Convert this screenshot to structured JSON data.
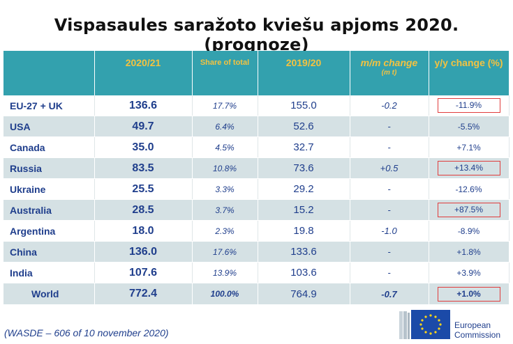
{
  "title": "Vispasaules saražoto kviešu apjoms 2020. (prognoze)",
  "chart_data": {
    "type": "table",
    "columns": [
      {
        "label": "",
        "sub": ""
      },
      {
        "label": "2020/21",
        "sub": ""
      },
      {
        "label": "Share of total",
        "sub": ""
      },
      {
        "label": "2019/20",
        "sub": ""
      },
      {
        "label": "m/m change",
        "sub": "(m t)"
      },
      {
        "label": "y/y change (%)",
        "sub": ""
      }
    ],
    "rows": [
      {
        "country": "EU-27 + UK",
        "prod_2020_21": "136.6",
        "share": "17.7%",
        "prod_2019_20": "155.0",
        "mm_change": "-0.2",
        "yy_change": "-11.9%",
        "highlight": true
      },
      {
        "country": "USA",
        "prod_2020_21": "49.7",
        "share": "6.4%",
        "prod_2019_20": "52.6",
        "mm_change": "-",
        "yy_change": "-5.5%",
        "highlight": false
      },
      {
        "country": "Canada",
        "prod_2020_21": "35.0",
        "share": "4.5%",
        "prod_2019_20": "32.7",
        "mm_change": "-",
        "yy_change": "+7.1%",
        "highlight": false
      },
      {
        "country": "Russia",
        "prod_2020_21": "83.5",
        "share": "10.8%",
        "prod_2019_20": "73.6",
        "mm_change": "+0.5",
        "yy_change": "+13.4%",
        "highlight": true
      },
      {
        "country": "Ukraine",
        "prod_2020_21": "25.5",
        "share": "3.3%",
        "prod_2019_20": "29.2",
        "mm_change": "-",
        "yy_change": "-12.6%",
        "highlight": false
      },
      {
        "country": "Australia",
        "prod_2020_21": "28.5",
        "share": "3.7%",
        "prod_2019_20": "15.2",
        "mm_change": "-",
        "yy_change": "+87.5%",
        "highlight": true
      },
      {
        "country": "Argentina",
        "prod_2020_21": "18.0",
        "share": "2.3%",
        "prod_2019_20": "19.8",
        "mm_change": "-1.0",
        "yy_change": "-8.9%",
        "highlight": false
      },
      {
        "country": "China",
        "prod_2020_21": "136.0",
        "share": "17.6%",
        "prod_2019_20": "133.6",
        "mm_change": "-",
        "yy_change": "+1.8%",
        "highlight": false
      },
      {
        "country": "India",
        "prod_2020_21": "107.6",
        "share": "13.9%",
        "prod_2019_20": "103.6",
        "mm_change": "-",
        "yy_change": "+3.9%",
        "highlight": false
      },
      {
        "country": "World",
        "prod_2020_21": "772.4",
        "share": "100.0%",
        "prod_2019_20": "764.9",
        "mm_change": "-0.7",
        "yy_change": "+1.0%",
        "highlight": true
      }
    ]
  },
  "footnote": "(WASDE – 606 of 10 november 2020)",
  "logo": {
    "line1": "European",
    "line2": "Commission",
    "icon": "eu-flag-icon"
  },
  "colors": {
    "header_bg": "#33a1ae",
    "header_text": "#f3c241",
    "row_alt_bg": "#d5e1e4",
    "value_text": "#1f3e8c",
    "highlight_box": "#e03c3c"
  }
}
